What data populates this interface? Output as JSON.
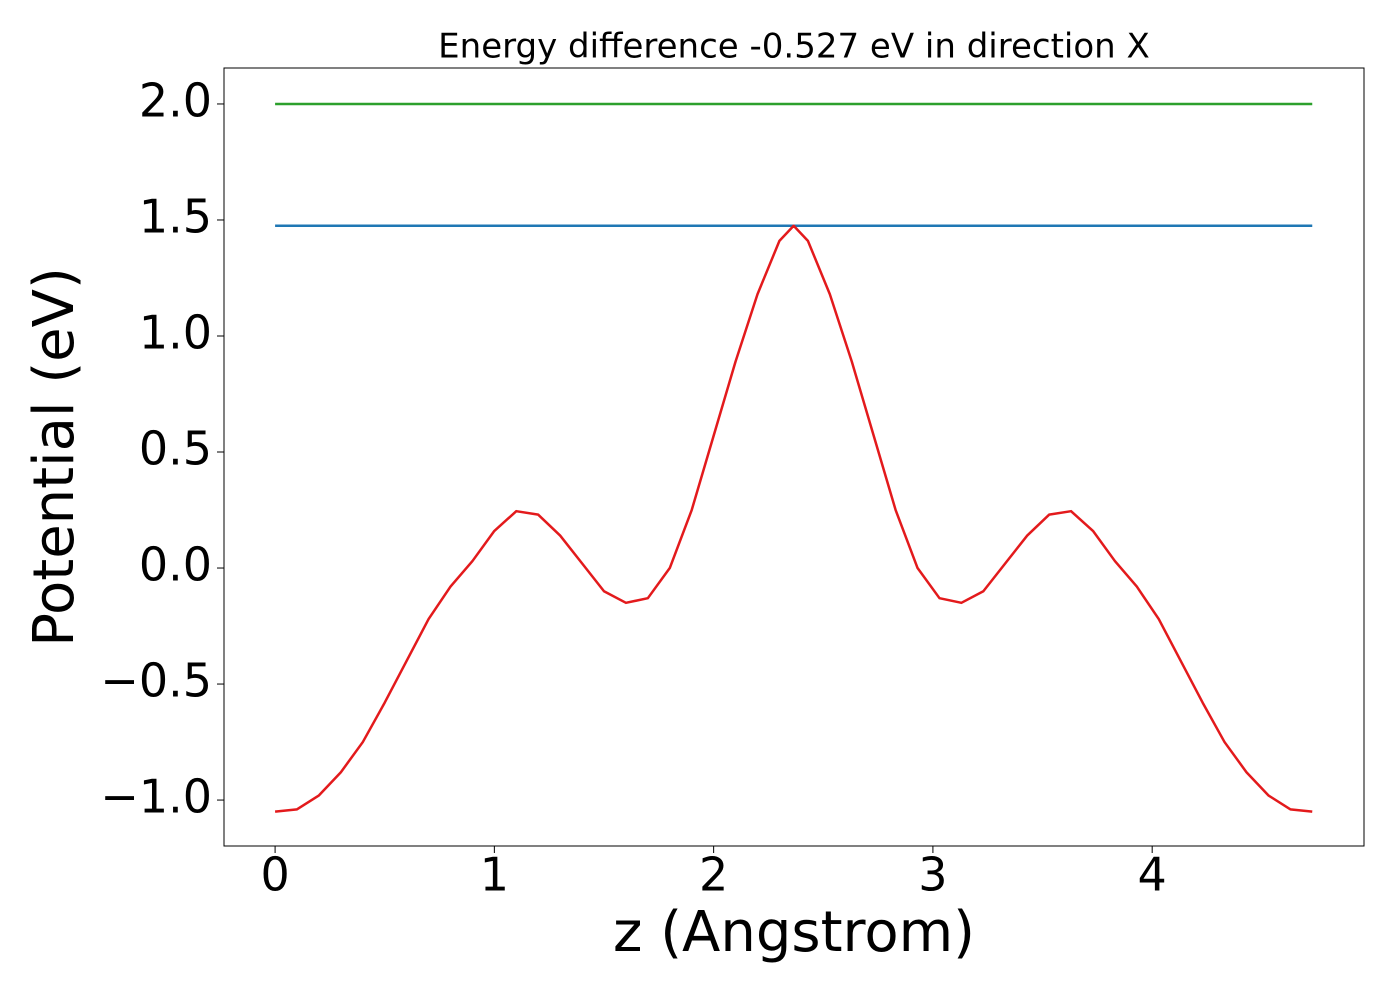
{
  "chart_data": {
    "type": "line",
    "title": "Energy difference -0.527 eV in direction X",
    "xlabel": "z (Angstrom)",
    "ylabel": "Potential (eV)",
    "xlim": [
      -0.233,
      4.966
    ],
    "ylim": [
      -1.198,
      2.155
    ],
    "xticks": [
      0,
      1,
      2,
      3,
      4
    ],
    "yticks": [
      {
        "value": -1.0,
        "label": "−1.0"
      },
      {
        "value": -0.5,
        "label": "−0.5"
      },
      {
        "value": 0.0,
        "label": "0.0"
      },
      0.5,
      {
        "value": 1.0,
        "label": "1.0"
      },
      1.5,
      {
        "value": 2.0,
        "label": "2.0"
      }
    ],
    "grid": false,
    "series": [
      {
        "color": "#2ca02c",
        "x": [
          0,
          4.73
        ],
        "values": [
          2.0,
          2.0
        ]
      },
      {
        "color": "#1f77b4",
        "x": [
          0,
          4.73
        ],
        "values": [
          1.475,
          1.475
        ]
      },
      {
        "color": "#e31a1c",
        "x": [
          0,
          0.1,
          0.2,
          0.3,
          0.4,
          0.5,
          0.6,
          0.7,
          0.8,
          0.9,
          1.0,
          1.1,
          1.2,
          1.3,
          1.4,
          1.5,
          1.6,
          1.7,
          1.8,
          1.9,
          2.0,
          2.1,
          2.2,
          2.3,
          2.365,
          2.43,
          2.53,
          2.63,
          2.73,
          2.83,
          2.93,
          3.03,
          3.13,
          3.23,
          3.33,
          3.43,
          3.53,
          3.63,
          3.73,
          3.83,
          3.93,
          4.03,
          4.13,
          4.23,
          4.33,
          4.43,
          4.53,
          4.63,
          4.73
        ],
        "values": [
          -1.05,
          -1.04,
          -0.98,
          -0.88,
          -0.75,
          -0.58,
          -0.4,
          -0.22,
          -0.08,
          0.03,
          0.16,
          0.245,
          0.23,
          0.14,
          0.02,
          -0.1,
          -0.15,
          -0.13,
          0.0,
          0.25,
          0.57,
          0.89,
          1.18,
          1.41,
          1.475,
          1.41,
          1.18,
          0.89,
          0.57,
          0.25,
          0.0,
          -0.13,
          -0.15,
          -0.1,
          0.02,
          0.14,
          0.23,
          0.245,
          0.16,
          0.03,
          -0.08,
          -0.22,
          -0.4,
          -0.58,
          -0.75,
          -0.88,
          -0.98,
          -1.04,
          -1.05
        ]
      }
    ]
  }
}
